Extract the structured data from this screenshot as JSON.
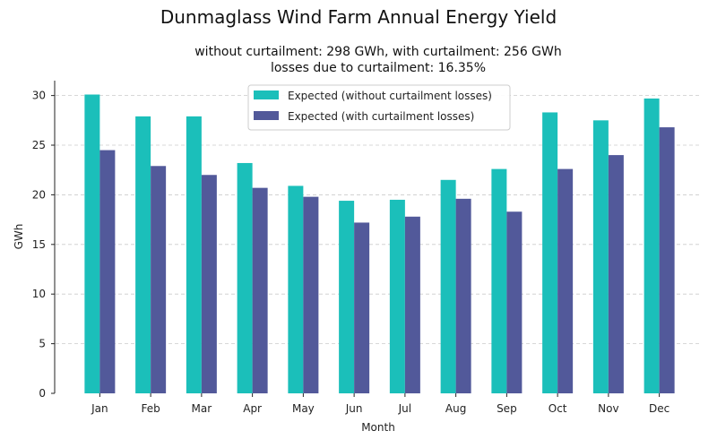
{
  "chart_data": {
    "type": "bar",
    "title": "Dunmaglass Wind Farm Annual Energy Yield",
    "subtitle_line1": "without curtailment: 298 GWh, with curtailment: 256 GWh",
    "subtitle_line2": "losses due to curtailment: 16.35%",
    "xlabel": "Month",
    "ylabel": "GWh",
    "ylim": [
      0,
      31.5
    ],
    "yticks": [
      0,
      5,
      10,
      15,
      20,
      25,
      30
    ],
    "grid": "horizontal dashed",
    "legend_position": "top-center",
    "categories": [
      "Jan",
      "Feb",
      "Mar",
      "Apr",
      "May",
      "Jun",
      "Jul",
      "Aug",
      "Sep",
      "Oct",
      "Nov",
      "Dec"
    ],
    "series": [
      {
        "name": "Expected (without curtailment losses)",
        "color": "#1bbfba",
        "values": [
          30.1,
          27.9,
          27.9,
          23.2,
          20.9,
          19.4,
          19.5,
          21.5,
          22.6,
          28.3,
          27.5,
          29.7
        ]
      },
      {
        "name": "Expected (with curtailment losses)",
        "color": "#52599a",
        "values": [
          24.5,
          22.9,
          22.0,
          20.7,
          19.8,
          17.2,
          17.8,
          19.6,
          18.3,
          22.6,
          24.0,
          26.8
        ]
      }
    ]
  }
}
